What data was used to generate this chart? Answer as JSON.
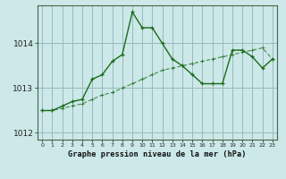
{
  "title": "Graphe pression niveau de la mer (hPa)",
  "bg_color": "#cce8e8",
  "grid_color": "#99bbbb",
  "line1_color": "#1a6b1a",
  "line2_color": "#1a6b1a",
  "line1_x": [
    0,
    1,
    2,
    3,
    4,
    5,
    6,
    7,
    8,
    9,
    10,
    11,
    12,
    13,
    14,
    15,
    16,
    17,
    18,
    19,
    20,
    21,
    22,
    23
  ],
  "line1_y": [
    1012.5,
    1012.5,
    1012.55,
    1012.6,
    1012.65,
    1012.75,
    1012.85,
    1012.9,
    1013.0,
    1013.1,
    1013.2,
    1013.3,
    1013.4,
    1013.45,
    1013.5,
    1013.55,
    1013.6,
    1013.65,
    1013.7,
    1013.75,
    1013.8,
    1013.85,
    1013.9,
    1013.65
  ],
  "line2_x": [
    0,
    1,
    2,
    3,
    4,
    5,
    6,
    7,
    8,
    9,
    10,
    11,
    12,
    13,
    14,
    15,
    16,
    17,
    18,
    19,
    20,
    21,
    22,
    23
  ],
  "line2_y": [
    1012.5,
    1012.5,
    1012.6,
    1012.7,
    1012.75,
    1013.2,
    1013.3,
    1013.6,
    1013.75,
    1014.7,
    1014.35,
    1014.35,
    1014.0,
    1013.65,
    1013.5,
    1013.3,
    1013.1,
    1013.1,
    1013.1,
    1013.85,
    1013.85,
    1013.7,
    1013.45,
    1013.65
  ],
  "ylim": [
    1011.85,
    1014.85
  ],
  "xlim": [
    -0.5,
    23.5
  ],
  "yticks": [
    1012,
    1013,
    1014
  ],
  "xticks": [
    0,
    1,
    2,
    3,
    4,
    5,
    6,
    7,
    8,
    9,
    10,
    11,
    12,
    13,
    14,
    15,
    16,
    17,
    18,
    19,
    20,
    21,
    22,
    23
  ]
}
